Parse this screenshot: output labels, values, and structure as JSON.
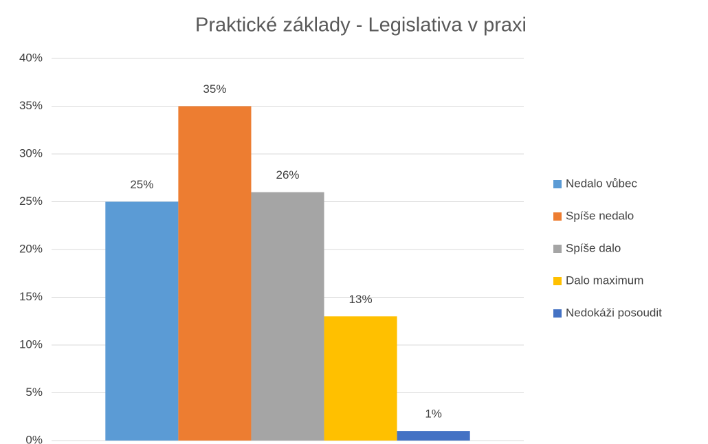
{
  "chart_data": {
    "type": "bar",
    "title": "Praktické základy - Legislativa v praxi",
    "categories": [
      null
    ],
    "series": [
      {
        "name": "Nedalo vůbec",
        "color": "#5b9bd5",
        "values": [
          25
        ],
        "value_labels": [
          "25%"
        ]
      },
      {
        "name": "Spíše nedalo",
        "color": "#ed7d31",
        "values": [
          35
        ],
        "value_labels": [
          "35%"
        ]
      },
      {
        "name": "Spíše dalo",
        "color": "#a5a5a5",
        "values": [
          26
        ],
        "value_labels": [
          "26%"
        ]
      },
      {
        "name": "Dalo maximum",
        "color": "#ffc000",
        "values": [
          13
        ],
        "value_labels": [
          "13%"
        ]
      },
      {
        "name": "Nedokáži posoudit",
        "color": "#4472c4",
        "values": [
          1
        ],
        "value_labels": [
          "1%"
        ]
      }
    ],
    "ylim": [
      0,
      40
    ],
    "yticks": [
      {
        "value": 0,
        "label": "0%"
      },
      {
        "value": 5,
        "label": "5%"
      },
      {
        "value": 10,
        "label": "10%"
      },
      {
        "value": 15,
        "label": "15%"
      },
      {
        "value": 20,
        "label": "20%"
      },
      {
        "value": 25,
        "label": "25%"
      },
      {
        "value": 30,
        "label": "30%"
      },
      {
        "value": 35,
        "label": "35%"
      },
      {
        "value": 40,
        "label": "40%"
      }
    ],
    "grid": true,
    "legend": "right"
  }
}
